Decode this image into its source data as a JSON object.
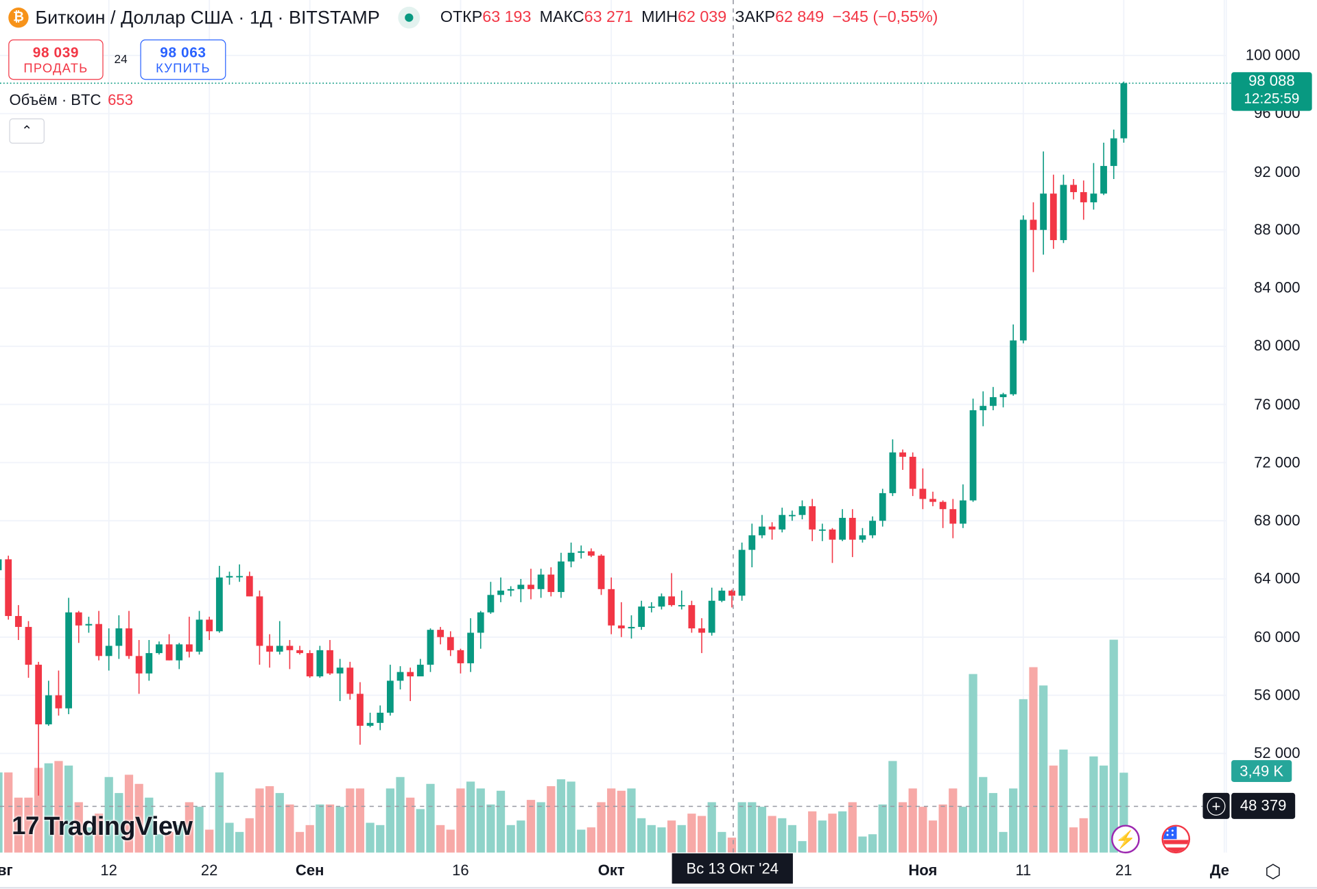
{
  "header": {
    "symbol_icon": "bitcoin-icon",
    "title": "Биткоин / Доллар США · 1Д · BITSTAMP",
    "ohlc": [
      {
        "label": "ОТКР",
        "value": "63 193"
      },
      {
        "label": "МАКС",
        "value": "63 271"
      },
      {
        "label": "МИН",
        "value": "62 039"
      },
      {
        "label": "ЗАКР",
        "value": "62 849"
      }
    ],
    "change": "−345 (−0,55%)"
  },
  "trade": {
    "sell_price": "98 039",
    "sell_label": "ПРОДАТЬ",
    "spread": "24",
    "buy_price": "98 063",
    "buy_label": "КУПИТЬ"
  },
  "volume_legend": {
    "label": "Объём · BTC",
    "value": "653"
  },
  "price_axis": {
    "labels": [
      "100 000",
      "96 000",
      "92 000",
      "88 000",
      "84 000",
      "80 000",
      "76 000",
      "72 000",
      "68 000",
      "64 000",
      "60 000",
      "56 000",
      "52 000"
    ],
    "last_price": "98 088",
    "countdown": "12:25:59",
    "last_volume": "3,49 K",
    "crosshair_price": "48 379"
  },
  "time_axis": {
    "labels": [
      {
        "text": "вг",
        "date": "2024-08-01",
        "bold": true
      },
      {
        "text": "12",
        "date": "2024-08-12",
        "bold": false
      },
      {
        "text": "22",
        "date": "2024-08-22",
        "bold": false
      },
      {
        "text": "Сен",
        "date": "2024-09-01",
        "bold": true
      },
      {
        "text": "16",
        "date": "2024-09-16",
        "bold": false
      },
      {
        "text": "Окт",
        "date": "2024-10-01",
        "bold": true
      },
      {
        "text": "Ноя",
        "date": "2024-11-01",
        "bold": true
      },
      {
        "text": "11",
        "date": "2024-11-11",
        "bold": false
      },
      {
        "text": "21",
        "date": "2024-11-21",
        "bold": false
      },
      {
        "text": "Де",
        "date": "2024-12-01",
        "bold": true
      }
    ],
    "crosshair_date": "Вс 13 Окт '24"
  },
  "branding": {
    "logo": "TradingView"
  },
  "icons": {
    "event1": "lightning-icon",
    "event2": "us-flag-icon",
    "settings": "settings-icon",
    "collapse": "chevron-up-icon"
  },
  "colors": {
    "up": "#089981",
    "down": "#f23645",
    "up_volume": "#8fd3c9",
    "down_volume": "#f7a9a7"
  },
  "chart_data": {
    "type": "candlestick",
    "symbol": "BTCUSD",
    "interval": "1D",
    "ylim": [
      50000,
      102000
    ],
    "grid": true,
    "columns": [
      "date",
      "open",
      "high",
      "low",
      "close",
      "volume"
    ],
    "candles": [
      [
        "2024-08-01",
        64600,
        65600,
        62300,
        65350,
        3500
      ],
      [
        "2024-08-02",
        65350,
        65600,
        61200,
        61450,
        3500
      ],
      [
        "2024-08-03",
        61450,
        62200,
        59800,
        60700,
        2400
      ],
      [
        "2024-08-04",
        60700,
        61100,
        57200,
        58100,
        2400
      ],
      [
        "2024-08-05",
        58100,
        58300,
        49100,
        54000,
        3700
      ],
      [
        "2024-08-06",
        54000,
        57000,
        53900,
        56000,
        3900
      ],
      [
        "2024-08-07",
        56000,
        57700,
        54600,
        55100,
        4000
      ],
      [
        "2024-08-08",
        55100,
        62700,
        54700,
        61700,
        3800
      ],
      [
        "2024-08-09",
        61700,
        61800,
        59600,
        60800,
        2200
      ],
      [
        "2024-08-10",
        60800,
        61400,
        60300,
        60900,
        1100
      ],
      [
        "2024-08-11",
        60900,
        61800,
        58400,
        58700,
        1700
      ],
      [
        "2024-08-12",
        58700,
        60600,
        57700,
        59400,
        3300
      ],
      [
        "2024-08-13",
        59400,
        61500,
        58500,
        60600,
        2600
      ],
      [
        "2024-08-14",
        60600,
        61800,
        58500,
        58700,
        3400
      ],
      [
        "2024-08-15",
        58700,
        59800,
        56100,
        57500,
        3000
      ],
      [
        "2024-08-16",
        57500,
        59800,
        57000,
        58900,
        2400
      ],
      [
        "2024-08-17",
        58900,
        59700,
        58800,
        59500,
        800
      ],
      [
        "2024-08-18",
        59500,
        60200,
        58400,
        58400,
        900
      ],
      [
        "2024-08-19",
        58400,
        59600,
        57800,
        59500,
        1200
      ],
      [
        "2024-08-20",
        59500,
        61400,
        58600,
        59000,
        2200
      ],
      [
        "2024-08-21",
        59000,
        61800,
        58800,
        61200,
        2000
      ],
      [
        "2024-08-22",
        61200,
        61400,
        59800,
        60400,
        1000
      ],
      [
        "2024-08-23",
        60400,
        64900,
        60300,
        64100,
        3500
      ],
      [
        "2024-08-24",
        64100,
        64500,
        63600,
        64200,
        1300
      ],
      [
        "2024-08-25",
        64200,
        65000,
        63800,
        64200,
        900
      ],
      [
        "2024-08-26",
        64200,
        64500,
        62800,
        62800,
        1500
      ],
      [
        "2024-08-27",
        62800,
        63200,
        58100,
        59400,
        2800
      ],
      [
        "2024-08-28",
        59400,
        60200,
        57900,
        59000,
        2900
      ],
      [
        "2024-08-29",
        59000,
        61100,
        58800,
        59400,
        2600
      ],
      [
        "2024-08-30",
        59400,
        59800,
        57800,
        59100,
        2100
      ],
      [
        "2024-08-31",
        59100,
        59400,
        58800,
        58900,
        900
      ],
      [
        "2024-09-01",
        58900,
        59100,
        57200,
        57300,
        1200
      ],
      [
        "2024-09-02",
        57300,
        59400,
        57200,
        59100,
        2100
      ],
      [
        "2024-09-03",
        59100,
        59800,
        57400,
        57500,
        2100
      ],
      [
        "2024-09-04",
        57500,
        58500,
        55600,
        57900,
        2000
      ],
      [
        "2024-09-05",
        57900,
        58300,
        55700,
        56100,
        2800
      ],
      [
        "2024-09-06",
        56100,
        56900,
        52600,
        53900,
        2800
      ],
      [
        "2024-09-07",
        53900,
        54800,
        53800,
        54100,
        1300
      ],
      [
        "2024-09-08",
        54100,
        55300,
        53600,
        54800,
        1200
      ],
      [
        "2024-09-09",
        54800,
        58100,
        54600,
        57000,
        2800
      ],
      [
        "2024-09-10",
        57000,
        58000,
        56400,
        57600,
        3300
      ],
      [
        "2024-09-11",
        57600,
        57900,
        55600,
        57300,
        2400
      ],
      [
        "2024-09-12",
        57300,
        58500,
        57300,
        58100,
        1900
      ],
      [
        "2024-09-13",
        58100,
        60600,
        57600,
        60500,
        3000
      ],
      [
        "2024-09-14",
        60500,
        60700,
        59500,
        60000,
        1200
      ],
      [
        "2024-09-15",
        60000,
        60400,
        58700,
        59100,
        1000
      ],
      [
        "2024-09-16",
        59100,
        59200,
        57500,
        58200,
        2800
      ],
      [
        "2024-09-17",
        58200,
        61300,
        57600,
        60300,
        3100
      ],
      [
        "2024-09-18",
        60300,
        61800,
        59200,
        61700,
        2800
      ],
      [
        "2024-09-19",
        61700,
        63800,
        61600,
        62900,
        2100
      ],
      [
        "2024-09-20",
        62900,
        64100,
        62400,
        63200,
        2700
      ],
      [
        "2024-09-21",
        63200,
        63500,
        62800,
        63300,
        1200
      ],
      [
        "2024-09-22",
        63300,
        64000,
        62400,
        63600,
        1400
      ],
      [
        "2024-09-23",
        63600,
        64700,
        62600,
        63300,
        2300
      ],
      [
        "2024-09-24",
        63300,
        64700,
        62700,
        64300,
        2200
      ],
      [
        "2024-09-25",
        64300,
        64800,
        62800,
        63100,
        2900
      ],
      [
        "2024-09-26",
        63100,
        65800,
        62700,
        65200,
        3200
      ],
      [
        "2024-09-27",
        65200,
        66500,
        64800,
        65800,
        3100
      ],
      [
        "2024-09-28",
        65800,
        66300,
        65400,
        65900,
        1000
      ],
      [
        "2024-09-29",
        65900,
        66100,
        65500,
        65600,
        1100
      ],
      [
        "2024-09-30",
        65600,
        65700,
        62900,
        63300,
        2200
      ],
      [
        "2024-10-01",
        63300,
        64100,
        60200,
        60800,
        2800
      ],
      [
        "2024-10-02",
        60800,
        62400,
        60000,
        60600,
        2700
      ],
      [
        "2024-10-03",
        60600,
        61500,
        59900,
        60700,
        2800
      ],
      [
        "2024-10-04",
        60700,
        62500,
        60500,
        62100,
        1500
      ],
      [
        "2024-10-05",
        62100,
        62400,
        61700,
        62100,
        1200
      ],
      [
        "2024-10-06",
        62100,
        63000,
        61900,
        62800,
        1100
      ],
      [
        "2024-10-07",
        62800,
        64400,
        62100,
        62200,
        1400
      ],
      [
        "2024-10-08",
        62200,
        63200,
        61900,
        62200,
        1200
      ],
      [
        "2024-10-09",
        62200,
        62500,
        60300,
        60600,
        1700
      ],
      [
        "2024-10-10",
        60600,
        61300,
        58900,
        60300,
        1600
      ],
      [
        "2024-10-11",
        60300,
        63400,
        60100,
        62500,
        2200
      ],
      [
        "2024-10-12",
        62500,
        63400,
        62400,
        63194,
        900
      ],
      [
        "2024-10-13",
        63193,
        63271,
        62039,
        62849,
        653
      ],
      [
        "2024-10-14",
        62849,
        66500,
        62500,
        66000,
        2200
      ],
      [
        "2024-10-15",
        66000,
        67800,
        64800,
        67000,
        2200
      ],
      [
        "2024-10-16",
        67000,
        68400,
        66800,
        67600,
        2000
      ],
      [
        "2024-10-17",
        67600,
        67900,
        66700,
        67400,
        1600
      ],
      [
        "2024-10-18",
        67400,
        68900,
        67200,
        68400,
        1500
      ],
      [
        "2024-10-19",
        68400,
        68700,
        68000,
        68400,
        1200
      ],
      [
        "2024-10-20",
        68400,
        69400,
        68100,
        69000,
        500
      ],
      [
        "2024-10-21",
        69000,
        69500,
        66600,
        67400,
        1800
      ],
      [
        "2024-10-22",
        67400,
        67800,
        66600,
        67400,
        1400
      ],
      [
        "2024-10-23",
        67400,
        67500,
        65100,
        66700,
        1700
      ],
      [
        "2024-10-24",
        66700,
        68800,
        66600,
        68200,
        1800
      ],
      [
        "2024-10-25",
        68200,
        68800,
        65500,
        66700,
        2200
      ],
      [
        "2024-10-26",
        66700,
        67500,
        66500,
        67000,
        700
      ],
      [
        "2024-10-27",
        67000,
        68300,
        66800,
        68000,
        800
      ],
      [
        "2024-10-28",
        68000,
        70200,
        67600,
        69900,
        2100
      ],
      [
        "2024-10-29",
        69900,
        73600,
        69700,
        72700,
        4000
      ],
      [
        "2024-10-30",
        72700,
        72900,
        71500,
        72400,
        2200
      ],
      [
        "2024-10-31",
        72400,
        72700,
        69700,
        70200,
        2800
      ],
      [
        "2024-11-01",
        70200,
        71600,
        68800,
        69500,
        2000
      ],
      [
        "2024-11-02",
        69500,
        70000,
        69000,
        69300,
        1400
      ],
      [
        "2024-11-03",
        69300,
        69400,
        67500,
        68800,
        2100
      ],
      [
        "2024-11-04",
        68800,
        69500,
        66800,
        67800,
        2800
      ],
      [
        "2024-11-05",
        67800,
        70500,
        67500,
        69400,
        2000
      ],
      [
        "2024-11-06",
        69400,
        76400,
        69300,
        75600,
        7800
      ],
      [
        "2024-11-07",
        75600,
        76900,
        74500,
        75900,
        3300
      ],
      [
        "2024-11-08",
        75900,
        77200,
        75600,
        76500,
        2600
      ],
      [
        "2024-11-09",
        76500,
        76800,
        75800,
        76700,
        900
      ],
      [
        "2024-11-10",
        76700,
        81500,
        76600,
        80400,
        2800
      ],
      [
        "2024-11-11",
        80400,
        89000,
        80200,
        88700,
        6700
      ],
      [
        "2024-11-12",
        88700,
        89900,
        85100,
        88000,
        8100
      ],
      [
        "2024-11-13",
        88000,
        93400,
        86300,
        90500,
        7300
      ],
      [
        "2024-11-14",
        90500,
        91800,
        86700,
        87300,
        3800
      ],
      [
        "2024-11-15",
        87300,
        91800,
        87100,
        91100,
        4500
      ],
      [
        "2024-11-16",
        91100,
        91500,
        90100,
        90600,
        1100
      ],
      [
        "2024-11-17",
        90600,
        91400,
        88700,
        89900,
        1500
      ],
      [
        "2024-11-18",
        89900,
        92600,
        89400,
        90500,
        4200
      ],
      [
        "2024-11-19",
        90500,
        94000,
        90400,
        92400,
        3800
      ],
      [
        "2024-11-20",
        92400,
        94900,
        91500,
        94300,
        9300
      ],
      [
        "2024-11-21",
        94300,
        98200,
        94000,
        98088,
        3490
      ]
    ]
  }
}
